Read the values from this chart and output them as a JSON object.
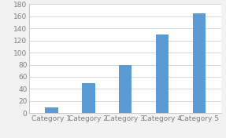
{
  "categories": [
    "Category 1",
    "Category 2",
    "Category 3",
    "Category 4",
    "Category 5"
  ],
  "values": [
    10,
    50,
    80,
    130,
    165
  ],
  "bar_color": "#5b9bd5",
  "ylim": [
    0,
    180
  ],
  "yticks": [
    0,
    20,
    40,
    60,
    80,
    100,
    120,
    140,
    160,
    180
  ],
  "background_color": "#f2f2f2",
  "plot_bg_color": "#ffffff",
  "grid_color": "#d8d8d8",
  "tick_label_fontsize": 6.5,
  "bar_width": 0.35,
  "spine_color": "#c0c0c0",
  "tick_color": "#808080"
}
